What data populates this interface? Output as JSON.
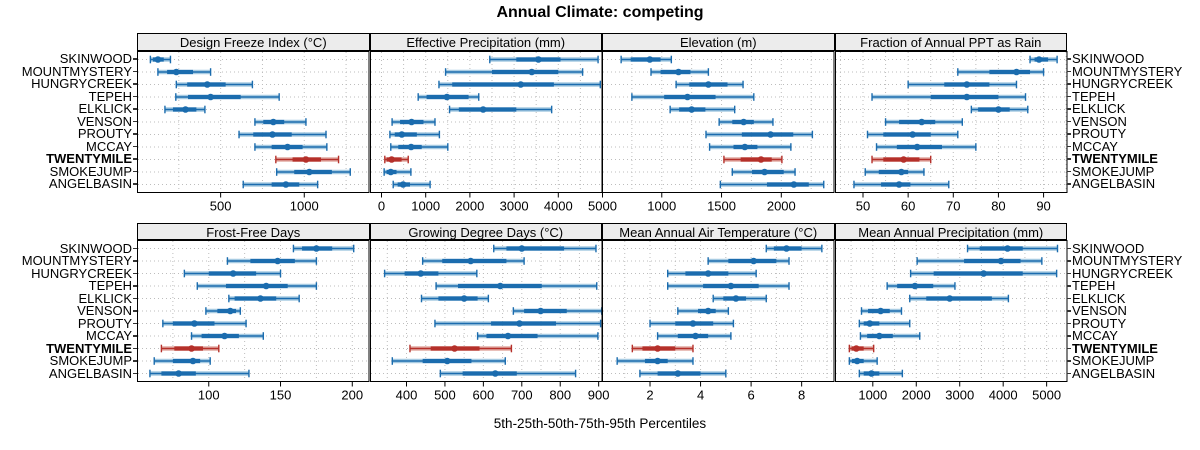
{
  "title": "Annual Climate: competing",
  "xlabel": "5th-25th-50th-75th-95th Percentiles",
  "sites": [
    "SKINWOOD",
    "MOUNTMYSTERY",
    "HUNGRYCREEK",
    "TEPEH",
    "ELKLICK",
    "VENSON",
    "PROUTY",
    "MCCAY",
    "TWENTYMILE",
    "SMOKEJUMP",
    "ANGELBASIN"
  ],
  "highlight_site": "TWENTYMILE",
  "colors": {
    "base": "#1b6cae",
    "base_light": "#a7cbe2",
    "highlight": "#b5302a",
    "highlight_light": "#e2aba4",
    "grid": "#bdbdbd",
    "border": "#000000",
    "strip_bg": "#ececec"
  },
  "chart_data": {
    "type": "percentile-dotplot",
    "percentile_labels": [
      "5th",
      "25th",
      "50th",
      "75th",
      "95th"
    ],
    "legend_position": "none",
    "grid": "dotted",
    "panels": [
      {
        "title": "Design Freeze Index (°C)",
        "row": 0,
        "col": 0,
        "xlim": [
          0,
          1390
        ],
        "ticks": [
          500,
          1000
        ],
        "tick_labels": [
          "500",
          "1000"
        ],
        "gridlines": [
          250,
          500,
          750,
          1000,
          1250
        ],
        "values": {
          "SKINWOOD": [
            80,
            95,
            125,
            160,
            200
          ],
          "MOUNTMYSTERY": [
            125,
            180,
            235,
            335,
            440
          ],
          "HUNGRYCREEK": [
            235,
            300,
            420,
            530,
            690
          ],
          "TEPEH": [
            232,
            305,
            440,
            620,
            850
          ],
          "ELKLICK": [
            167,
            215,
            290,
            355,
            406
          ],
          "VENSON": [
            705,
            755,
            815,
            880,
            1010
          ],
          "PROUTY": [
            610,
            695,
            810,
            925,
            1130
          ],
          "MCCAY": [
            705,
            805,
            900,
            990,
            1135
          ],
          "TWENTYMILE": [
            830,
            930,
            1010,
            1100,
            1205
          ],
          "SMOKEJUMP": [
            835,
            940,
            1030,
            1165,
            1275
          ],
          "ANGELBASIN": [
            635,
            805,
            890,
            970,
            1080
          ]
        }
      },
      {
        "title": "Effective Precipitation (mm)",
        "row": 0,
        "col": 1,
        "xlim": [
          -260,
          5000
        ],
        "ticks": [
          0,
          1000,
          2000,
          3000,
          4000,
          5000
        ],
        "tick_labels": [
          "0",
          "1000",
          "2000",
          "3000",
          "4000",
          "5000"
        ],
        "gridlines": [
          0,
          500,
          1000,
          1500,
          2000,
          2500,
          3000,
          3500,
          4000,
          4500
        ],
        "values": {
          "SKINWOOD": [
            2450,
            3050,
            3550,
            4050,
            4900
          ],
          "MOUNTMYSTERY": [
            1450,
            2500,
            3400,
            4000,
            4550
          ],
          "HUNGRYCREEK": [
            1300,
            1600,
            3150,
            3900,
            4950
          ],
          "TEPEH": [
            830,
            1020,
            1480,
            1970,
            2200
          ],
          "ELKLICK": [
            1540,
            1750,
            2300,
            3050,
            3850
          ],
          "VENSON": [
            240,
            420,
            680,
            950,
            1210
          ],
          "PROUTY": [
            190,
            300,
            460,
            800,
            1310
          ],
          "MCCAY": [
            210,
            380,
            670,
            910,
            1500
          ],
          "TWENTYMILE": [
            75,
            115,
            230,
            455,
            605
          ],
          "SMOKEJUMP": [
            60,
            115,
            210,
            340,
            665
          ],
          "ANGELBASIN": [
            265,
            365,
            490,
            645,
            1100
          ]
        }
      },
      {
        "title": "Elevation (m)",
        "row": 0,
        "col": 2,
        "xlim": [
          500,
          2445
        ],
        "ticks": [
          1000,
          1500,
          2000
        ],
        "tick_labels": [
          "1000",
          "1500",
          "2000"
        ],
        "gridlines": [
          750,
          1000,
          1250,
          1500,
          1750,
          2000,
          2250
        ],
        "values": {
          "SKINWOOD": [
            660,
            740,
            900,
            990,
            1080
          ],
          "MOUNTMYSTERY": [
            910,
            990,
            1140,
            1240,
            1390
          ],
          "HUNGRYCREEK": [
            1120,
            1230,
            1390,
            1550,
            1680
          ],
          "TEPEH": [
            750,
            1020,
            1215,
            1450,
            1770
          ],
          "ELKLICK": [
            1070,
            1145,
            1250,
            1365,
            1610
          ],
          "VENSON": [
            1480,
            1590,
            1685,
            1770,
            1930
          ],
          "PROUTY": [
            1370,
            1670,
            1910,
            2100,
            2260
          ],
          "MCCAY": [
            1400,
            1600,
            1695,
            1800,
            2080
          ],
          "TWENTYMILE": [
            1520,
            1660,
            1830,
            1920,
            2005
          ],
          "SMOKEJUMP": [
            1590,
            1755,
            1860,
            2020,
            2115
          ],
          "ANGELBASIN": [
            1490,
            1880,
            2105,
            2230,
            2355
          ]
        }
      },
      {
        "title": "Fraction of Annual PPT as Rain",
        "row": 0,
        "col": 3,
        "xlim": [
          43.8,
          95.3
        ],
        "ticks": [
          50,
          60,
          70,
          80,
          90
        ],
        "tick_labels": [
          "50",
          "60",
          "70",
          "80",
          "90"
        ],
        "gridlines": [
          45,
          50,
          55,
          60,
          65,
          70,
          75,
          80,
          85,
          90,
          95
        ],
        "values": {
          "SKINWOOD": [
            87,
            88,
            89,
            91,
            93
          ],
          "MOUNTMYSTERY": [
            71,
            78,
            84,
            87,
            90
          ],
          "HUNGRYCREEK": [
            60,
            68,
            73,
            78,
            84
          ],
          "TEPEH": [
            52,
            65,
            73,
            80,
            86
          ],
          "ELKLICK": [
            74,
            75.5,
            80,
            82.5,
            86.5
          ],
          "VENSON": [
            55,
            58,
            63,
            66,
            72
          ],
          "PROUTY": [
            51,
            54.5,
            61,
            65,
            71
          ],
          "MCCAY": [
            53,
            57.5,
            62,
            67.5,
            75
          ],
          "TWENTYMILE": [
            52,
            54.5,
            59,
            62.5,
            65
          ],
          "SMOKEJUMP": [
            50.5,
            53.5,
            58.5,
            60,
            63.5
          ],
          "ANGELBASIN": [
            48,
            54,
            58,
            60.5,
            69
          ]
        }
      },
      {
        "title": "Frost-Free Days",
        "row": 1,
        "col": 0,
        "xlim": [
          50,
          212
        ],
        "ticks": [
          100,
          150,
          200
        ],
        "tick_labels": [
          "100",
          "150",
          "200"
        ],
        "gridlines": [
          75,
          100,
          125,
          150,
          175,
          200
        ],
        "values": {
          "SKINWOOD": [
            159,
            165,
            175,
            186,
            201
          ],
          "MOUNTMYSTERY": [
            113,
            129,
            148,
            160,
            175
          ],
          "HUNGRYCREEK": [
            83,
            100,
            117,
            133,
            150
          ],
          "TEPEH": [
            92,
            112,
            140,
            155,
            175
          ],
          "ELKLICK": [
            114,
            118,
            136,
            147,
            163
          ],
          "VENSON": [
            98,
            106,
            115,
            119,
            122
          ],
          "PROUTY": [
            68,
            75,
            90,
            104,
            126
          ],
          "MCCAY": [
            88,
            95,
            111,
            121,
            138
          ],
          "TWENTYMILE": [
            67,
            76,
            88,
            96,
            107
          ],
          "SMOKEJUMP": [
            62,
            75,
            89,
            94,
            101
          ],
          "ANGELBASIN": [
            59,
            67,
            79,
            91,
            128
          ]
        }
      },
      {
        "title": "Growing Degree Days (°C)",
        "row": 1,
        "col": 1,
        "xlim": [
          305,
          910
        ],
        "ticks": [
          400,
          500,
          600,
          700,
          800,
          900
        ],
        "tick_labels": [
          "400",
          "500",
          "600",
          "700",
          "800",
          "900"
        ],
        "gridlines": [
          350,
          400,
          450,
          500,
          550,
          600,
          650,
          700,
          750,
          800,
          850,
          900
        ],
        "values": {
          "SKINWOOD": [
            627,
            660,
            700,
            810,
            893
          ],
          "MOUNTMYSTERY": [
            442,
            493,
            567,
            660,
            706
          ],
          "HUNGRYCREEK": [
            343,
            395,
            437,
            483,
            583
          ],
          "TEPEH": [
            477,
            534,
            644,
            752,
            895
          ],
          "ELKLICK": [
            439,
            483,
            550,
            585,
            613
          ],
          "VENSON": [
            678,
            706,
            749,
            817,
            908
          ],
          "PROUTY": [
            474,
            620,
            694,
            789,
            905
          ],
          "MCCAY": [
            585,
            608,
            664,
            741,
            898
          ],
          "TWENTYMILE": [
            409,
            463,
            525,
            590,
            673
          ],
          "SMOKEJUMP": [
            363,
            442,
            506,
            569,
            657
          ],
          "ANGELBASIN": [
            488,
            546,
            631,
            687,
            840
          ]
        }
      },
      {
        "title": "Mean Annual Air Temperature (°C)",
        "row": 1,
        "col": 2,
        "xlim": [
          0.1,
          9.3
        ],
        "ticks": [
          2,
          4,
          6,
          8
        ],
        "tick_labels": [
          "2",
          "4",
          "6",
          "8"
        ],
        "gridlines": [
          1,
          2,
          3,
          4,
          5,
          6,
          7,
          8,
          9
        ],
        "values": {
          "SKINWOOD": [
            6.6,
            6.9,
            7.4,
            8.0,
            8.8
          ],
          "MOUNTMYSTERY": [
            4.3,
            5.1,
            6.1,
            7.0,
            7.5
          ],
          "HUNGRYCREEK": [
            2.7,
            3.4,
            4.3,
            5.1,
            6.2
          ],
          "TEPEH": [
            2.7,
            4.1,
            5.2,
            6.3,
            7.5
          ],
          "ELKLICK": [
            4.5,
            4.9,
            5.4,
            5.8,
            6.6
          ],
          "VENSON": [
            3.1,
            3.9,
            4.3,
            4.6,
            5.1
          ],
          "PROUTY": [
            2.0,
            3.0,
            3.7,
            4.5,
            5.3
          ],
          "MCCAY": [
            2.3,
            3.1,
            3.8,
            4.3,
            5.2
          ],
          "TWENTYMILE": [
            1.3,
            1.7,
            2.3,
            3.0,
            3.7
          ],
          "SMOKEJUMP": [
            0.7,
            1.8,
            2.3,
            2.7,
            3.7
          ],
          "ANGELBASIN": [
            1.6,
            2.3,
            3.1,
            4.0,
            5.0
          ]
        }
      },
      {
        "title": "Mean Annual Precipitation (mm)",
        "row": 1,
        "col": 3,
        "xlim": [
          130,
          5480
        ],
        "ticks": [
          1000,
          2000,
          3000,
          4000,
          5000
        ],
        "tick_labels": [
          "1000",
          "2000",
          "3000",
          "4000",
          "5000"
        ],
        "gridlines": [
          500,
          1000,
          1500,
          2000,
          2500,
          3000,
          3500,
          4000,
          4500,
          5000
        ],
        "values": {
          "SKINWOOD": [
            3180,
            3460,
            4100,
            4450,
            5250
          ],
          "MOUNTMYSTERY": [
            2020,
            3100,
            3950,
            4400,
            4890
          ],
          "HUNGRYCREEK": [
            1870,
            2400,
            3550,
            4450,
            5230
          ],
          "TEPEH": [
            1330,
            1560,
            1970,
            2390,
            2890
          ],
          "ELKLICK": [
            1850,
            2230,
            2770,
            3740,
            4120
          ],
          "VENSON": [
            740,
            890,
            1180,
            1390,
            1660
          ],
          "PROUTY": [
            690,
            790,
            930,
            1150,
            1850
          ],
          "MCCAY": [
            715,
            870,
            1150,
            1460,
            2080
          ],
          "TWENTYMILE": [
            460,
            510,
            620,
            790,
            1020
          ],
          "SMOKEJUMP": [
            460,
            520,
            640,
            790,
            1100
          ],
          "ANGELBASIN": [
            690,
            790,
            970,
            1150,
            1680
          ]
        }
      }
    ]
  }
}
